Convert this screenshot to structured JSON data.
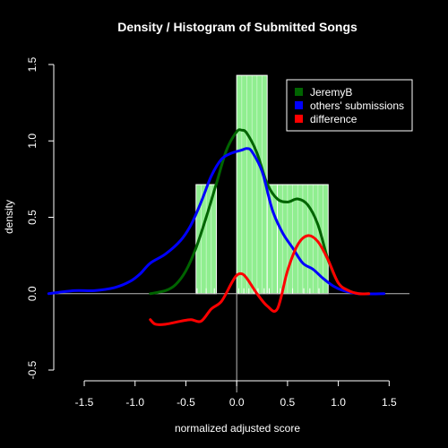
{
  "chart_data": {
    "type": "histogram-density",
    "title": "Density / Histogram of Submitted Songs",
    "xlabel": "normalized adjusted score",
    "ylabel": "density",
    "xlim": [
      -1.8,
      1.7
    ],
    "ylim": [
      -0.5,
      1.5
    ],
    "x_ticks": [
      -1.5,
      -1.0,
      -0.5,
      0.0,
      0.5,
      1.0,
      1.5
    ],
    "x_tick_labels": [
      "-1.5",
      "-1.0",
      "-0.5",
      "0.0",
      "0.5",
      "1.0",
      "1.5"
    ],
    "y_ticks": [
      -0.5,
      0.0,
      0.5,
      1.0,
      1.5
    ],
    "y_tick_labels": [
      "-0.5",
      "0.0",
      "0.5",
      "1.0",
      "1.5"
    ],
    "legend_position": "top-right",
    "histogram": {
      "color": "#90ee90",
      "bins": [
        {
          "x0": -0.4,
          "x1": -0.2,
          "density": 0.714
        },
        {
          "x0": -0.2,
          "x1": 0.0,
          "density": 0.0
        },
        {
          "x0": 0.0,
          "x1": 0.3,
          "density": 1.429
        },
        {
          "x0": 0.3,
          "x1": 0.4,
          "density": 0.714
        },
        {
          "x0": 0.4,
          "x1": 0.9,
          "density": 0.714
        }
      ]
    },
    "rug": [
      -0.39,
      -0.3,
      -0.22,
      0.02,
      0.07,
      0.12,
      0.17,
      0.21,
      0.27,
      0.32,
      0.43,
      0.55,
      0.66,
      0.72,
      0.81
    ],
    "series": [
      {
        "name": "JeremyB",
        "color": "#006400",
        "x": [
          -0.85,
          -0.7,
          -0.6,
          -0.5,
          -0.4,
          -0.3,
          -0.2,
          -0.1,
          0.0,
          0.05,
          0.1,
          0.2,
          0.3,
          0.4,
          0.5,
          0.6,
          0.7,
          0.8,
          0.9,
          1.0,
          1.1,
          1.2,
          1.3
        ],
        "y": [
          0.0,
          0.02,
          0.06,
          0.15,
          0.3,
          0.5,
          0.72,
          0.94,
          1.06,
          1.07,
          1.05,
          0.92,
          0.72,
          0.62,
          0.6,
          0.62,
          0.58,
          0.45,
          0.22,
          0.07,
          0.02,
          0.0,
          0.0
        ]
      },
      {
        "name": "others' submissions",
        "color": "#0000ff",
        "x": [
          -1.85,
          -1.6,
          -1.4,
          -1.2,
          -1.05,
          -0.95,
          -0.85,
          -0.7,
          -0.55,
          -0.45,
          -0.35,
          -0.25,
          -0.15,
          -0.05,
          0.05,
          0.1,
          0.15,
          0.25,
          0.35,
          0.45,
          0.55,
          0.65,
          0.75,
          0.85,
          0.95,
          1.05,
          1.2,
          1.45
        ],
        "y": [
          0.0,
          0.02,
          0.02,
          0.04,
          0.08,
          0.13,
          0.2,
          0.26,
          0.35,
          0.45,
          0.6,
          0.77,
          0.88,
          0.92,
          0.94,
          0.95,
          0.93,
          0.8,
          0.55,
          0.4,
          0.3,
          0.2,
          0.16,
          0.1,
          0.05,
          0.02,
          0.0,
          0.0
        ]
      },
      {
        "name": "difference",
        "color": "#ff0000",
        "x": [
          -0.85,
          -0.8,
          -0.7,
          -0.55,
          -0.45,
          -0.35,
          -0.25,
          -0.15,
          -0.05,
          0.0,
          0.05,
          0.1,
          0.2,
          0.3,
          0.4,
          0.5,
          0.6,
          0.7,
          0.8,
          0.9,
          1.0,
          1.1,
          1.2,
          1.3
        ],
        "y": [
          -0.17,
          -0.2,
          -0.2,
          -0.18,
          -0.17,
          -0.18,
          -0.1,
          -0.05,
          0.07,
          0.12,
          0.13,
          0.1,
          0.0,
          -0.08,
          -0.1,
          0.15,
          0.32,
          0.38,
          0.34,
          0.22,
          0.07,
          0.02,
          0.0,
          0.0
        ]
      }
    ]
  }
}
